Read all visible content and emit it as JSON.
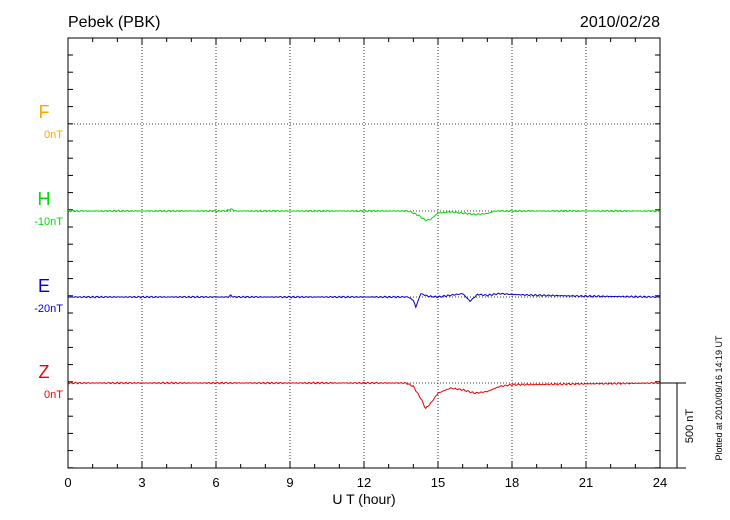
{
  "header": {
    "station": "Pebek (PBK)",
    "date": "2010/02/28"
  },
  "footer": {
    "plotted_note": "Plotted at 2010/09/16 14:19 UT"
  },
  "scale_bar": {
    "label": "500 nT",
    "nT": 500
  },
  "chart_data": {
    "type": "line",
    "title": "Pebek (PBK)",
    "xlabel": "U T (hour)",
    "xlim": [
      0,
      24
    ],
    "x_ticks": [
      0,
      3,
      6,
      9,
      12,
      15,
      18,
      21,
      24
    ],
    "grid": true,
    "series": [
      {
        "name": "F",
        "offset_label": "0nT",
        "color": "#ffa500",
        "values": []
      },
      {
        "name": "H",
        "offset_label": "-10nT",
        "color": "#00dd00",
        "x": [
          0,
          6.4,
          6.6,
          6.8,
          13.8,
          14.2,
          14.5,
          14.7,
          15.0,
          15.5,
          16.5,
          17.0,
          17.3,
          24
        ],
        "values": [
          0,
          0,
          12,
          0,
          0,
          -25,
          -55,
          -50,
          -12,
          -5,
          -20,
          -15,
          0,
          0
        ]
      },
      {
        "name": "E",
        "offset_label": "-20nT",
        "color": "#0000cc",
        "x": [
          0,
          6.5,
          6.6,
          6.7,
          13.8,
          14.0,
          14.1,
          14.3,
          14.6,
          15.0,
          15.5,
          16.0,
          16.3,
          16.6,
          17.0,
          17.5,
          18.0,
          19.0,
          21.0,
          24
        ],
        "values": [
          0,
          0,
          10,
          0,
          0,
          -20,
          -60,
          20,
          5,
          0,
          10,
          20,
          -25,
          15,
          10,
          20,
          15,
          10,
          5,
          0
        ]
      },
      {
        "name": "Z",
        "offset_label": "0nT",
        "color": "#ee0000",
        "x": [
          0,
          13.7,
          14.0,
          14.3,
          14.5,
          14.7,
          15.0,
          15.5,
          16.0,
          16.5,
          17.0,
          17.5,
          18.0,
          24
        ],
        "values": [
          0,
          0,
          -20,
          -90,
          -150,
          -120,
          -60,
          -30,
          -40,
          -60,
          -50,
          -20,
          -10,
          0
        ]
      }
    ]
  }
}
